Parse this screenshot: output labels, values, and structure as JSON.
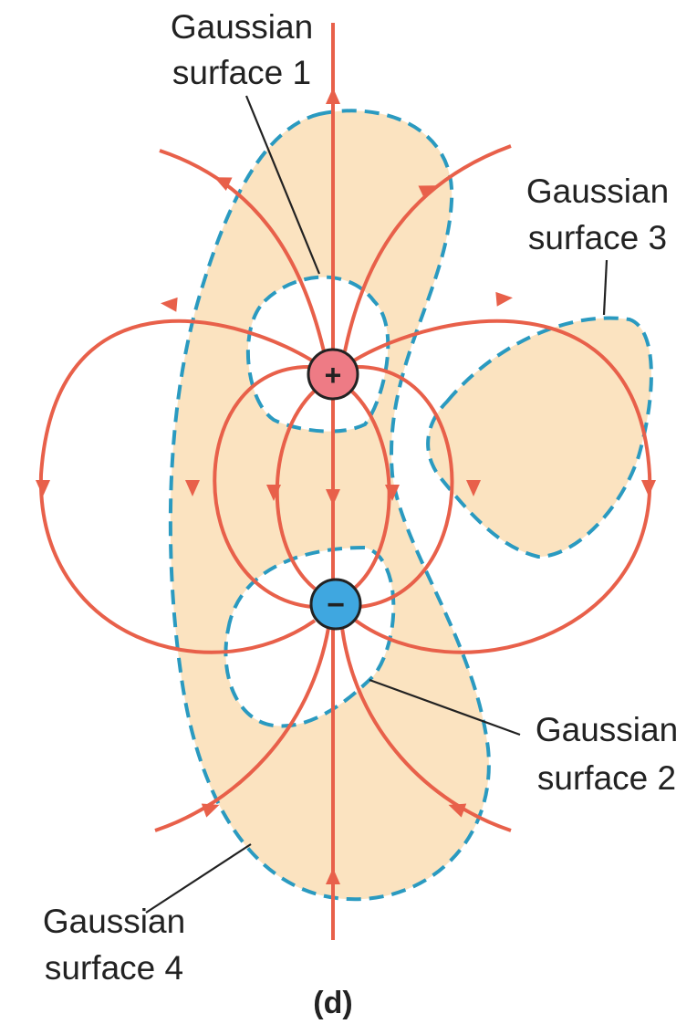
{
  "labels": [
    {
      "lines": [
        "Gaussian",
        "surface 1"
      ]
    },
    {
      "lines": [
        "Gaussian",
        "surface 3"
      ]
    },
    {
      "lines": [
        "Gaussian",
        "surface 2"
      ]
    },
    {
      "lines": [
        "Gaussian",
        "surface 4"
      ]
    }
  ],
  "charges": [
    {
      "sign": "+"
    },
    {
      "sign": "−"
    }
  ],
  "caption": "(d)"
}
